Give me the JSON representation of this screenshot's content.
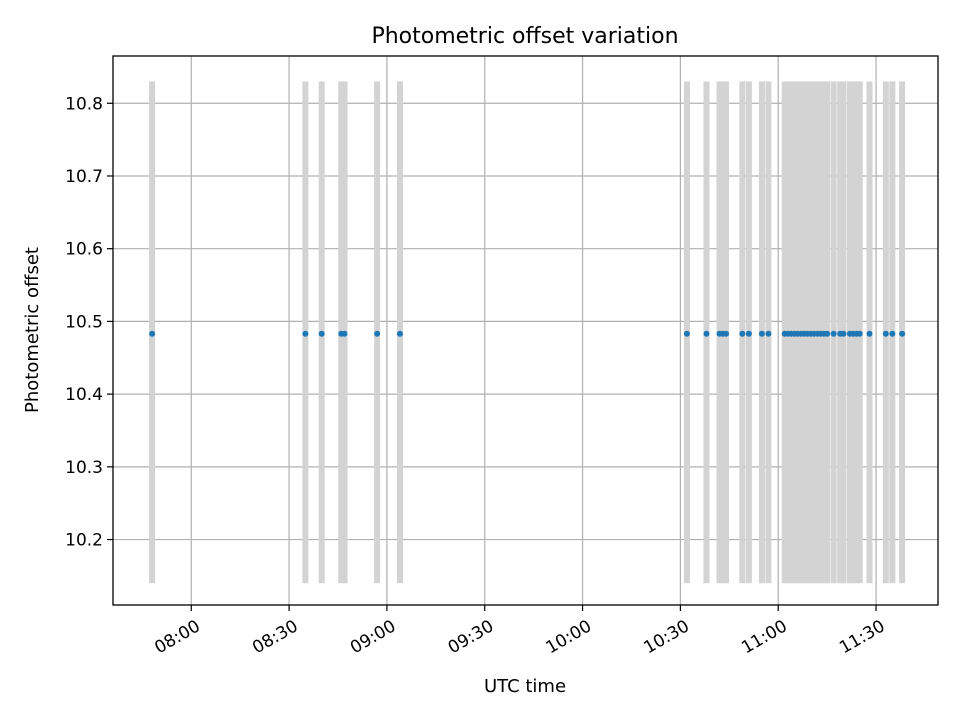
{
  "chart_data": {
    "type": "scatter",
    "title": "Photometric offset variation",
    "xlabel": "UTC time",
    "ylabel": "Photometric offset",
    "x_ticks": [
      "08:00",
      "08:30",
      "09:00",
      "09:30",
      "10:00",
      "10:30",
      "11:00",
      "11:30"
    ],
    "y_ticks": [
      "10.2",
      "10.3",
      "10.4",
      "10.5",
      "10.6",
      "10.7",
      "10.8"
    ],
    "xlim": [
      "07:36",
      "11:49"
    ],
    "ylim": [
      10.11,
      10.865
    ],
    "grid": true,
    "error_bar_color": "#d3d3d3",
    "point_color": "#1f77b4",
    "error_range": [
      10.14,
      10.83
    ],
    "series": [
      {
        "y_value": 10.483,
        "x": [
          "07:48",
          "08:35",
          "08:40",
          "08:46",
          "08:47",
          "08:57",
          "09:04",
          "10:32",
          "10:38",
          "10:42",
          "10:43",
          "10:44",
          "10:49",
          "10:51",
          "10:55",
          "10:57",
          "11:02",
          "11:03",
          "11:04",
          "11:05",
          "11:06",
          "11:07",
          "11:08",
          "11:09",
          "11:10",
          "11:11",
          "11:12",
          "11:13",
          "11:14",
          "11:15",
          "11:17",
          "11:19",
          "11:20",
          "11:22",
          "11:23",
          "11:24",
          "11:25",
          "11:28",
          "11:33",
          "11:35",
          "11:38"
        ]
      }
    ]
  }
}
